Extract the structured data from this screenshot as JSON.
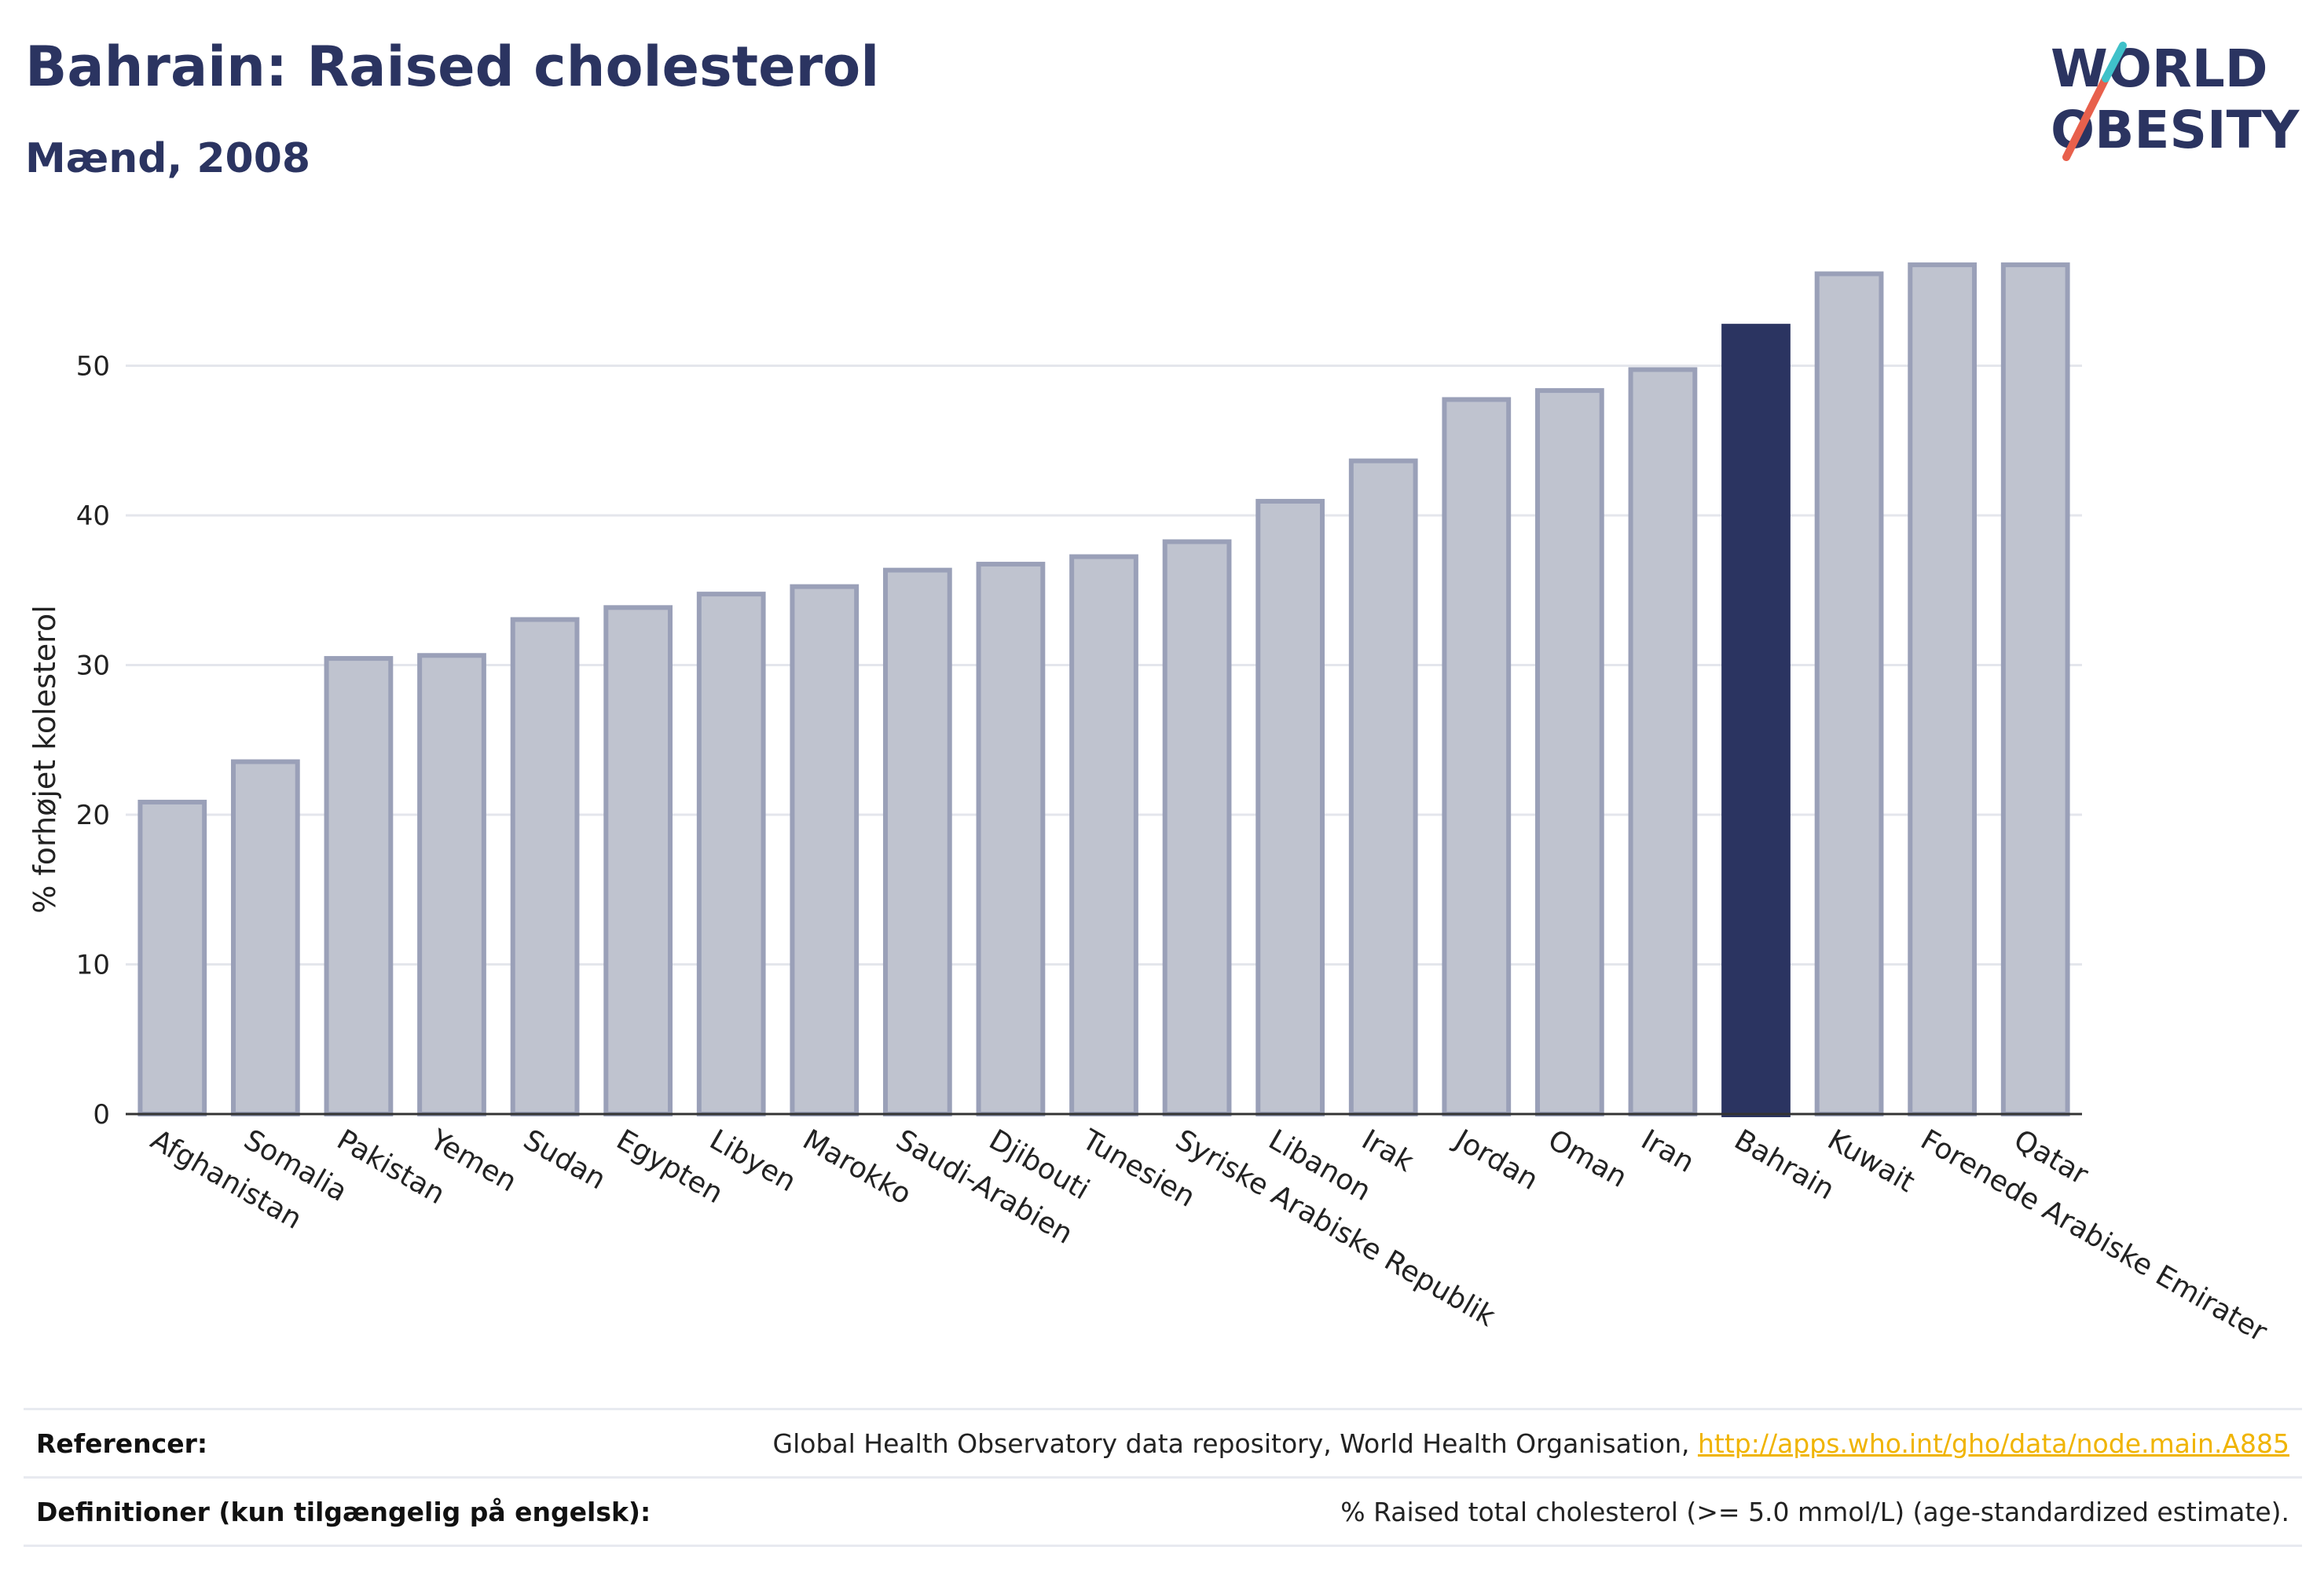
{
  "header": {
    "title": "Bahrain: Raised cholesterol",
    "subtitle": "Mænd, 2008"
  },
  "logo": {
    "line1": "WORLD",
    "line2": "OBESITY",
    "colors": {
      "text": "#2b3461",
      "slash_red": "#e8604c",
      "slash_teal": "#3fc1c9"
    }
  },
  "chart_data": {
    "type": "bar",
    "title": "",
    "xlabel": "",
    "ylabel": "% forhøjet kolesterol",
    "ylim": [
      0,
      60
    ],
    "yticks": [
      0,
      10,
      20,
      30,
      40,
      50
    ],
    "grid": true,
    "highlight": "Bahrain",
    "colors": {
      "bar": "#bfc3cf",
      "bar_edge": "#9aa0b8",
      "highlight": "#2b3461"
    },
    "categories": [
      "Afghanistan",
      "Somalia",
      "Pakistan",
      "Yemen",
      "Sudan",
      "Egypten",
      "Libyen",
      "Marokko",
      "Saudi-Arabien",
      "Djibouti",
      "Tunesien",
      "Syriske Arabiske Republik",
      "Libanon",
      "Irak",
      "Jordan",
      "Oman",
      "Iran",
      "Bahrain",
      "Kuwait",
      "Forenede Arabiske Emirater",
      "Qatar"
    ],
    "values": [
      21.0,
      23.7,
      30.6,
      30.8,
      33.2,
      34.0,
      34.9,
      35.4,
      36.5,
      36.9,
      37.4,
      38.4,
      41.1,
      43.8,
      47.9,
      48.5,
      49.9,
      52.8,
      56.3,
      56.9,
      56.9
    ]
  },
  "references": [
    {
      "label": "Referencer:",
      "value": "Global Health Observatory data repository, World Health Organisation, ",
      "link": "http://apps.who.int/gho/data/node.main.A885"
    },
    {
      "label": "Definitioner (kun tilgængelig på engelsk):",
      "value": "% Raised total cholesterol (>= 5.0 mmol/L) (age-standardized estimate)."
    }
  ]
}
